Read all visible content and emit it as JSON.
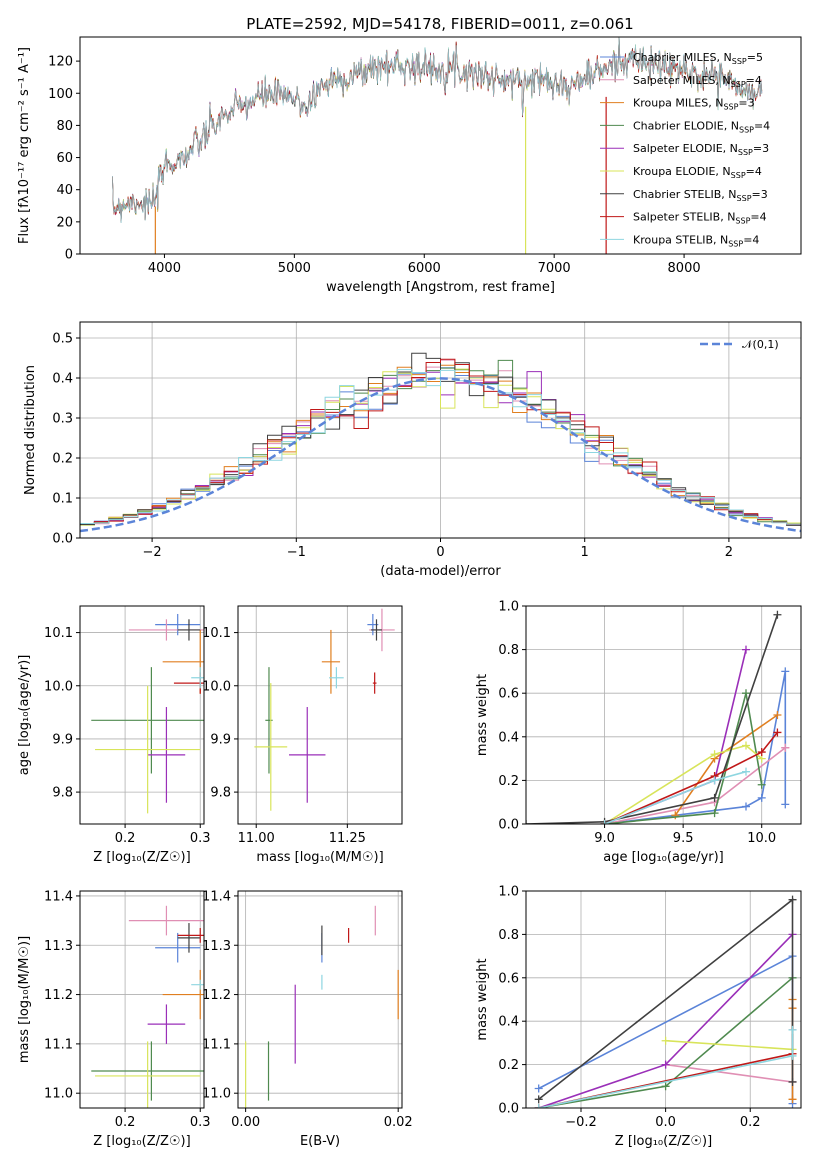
{
  "title": "PLATE=2592, MJD=54178, FIBERID=0011, z=0.061",
  "colors": {
    "Chabrier MILES": "#5b84d8",
    "Salpeter MILES": "#e08fb4",
    "Kroupa MILES": "#e07f20",
    "Chabrier ELODIE": "#4f8a4f",
    "Salpeter ELODIE": "#9a2fb8",
    "Kroupa ELODIE": "#d8e45a",
    "Chabrier STELIB": "#404040",
    "Salpeter STELIB": "#c01818",
    "Kroupa STELIB": "#8ed6e0"
  },
  "chart_data": [
    {
      "type": "line",
      "name": "spectrum",
      "xlabel": "wavelength [Angstrom, rest frame]",
      "ylabel": "Flux [f_λ10^-17 erg cm^-2 s^-1 A^-1]",
      "xlim": [
        3350,
        8900
      ],
      "ylim": [
        0,
        135
      ],
      "xticks": [
        4000,
        5000,
        6000,
        7000,
        8000
      ],
      "yticks": [
        0,
        20,
        40,
        60,
        80,
        100,
        120
      ],
      "grid": false,
      "legend_position": "top-right",
      "legend": [
        {
          "label": "Chabrier MILES, N",
          "sub": "SSP",
          "eq": "=5"
        },
        {
          "label": "Salpeter MILES, N",
          "sub": "SSP",
          "eq": "=4"
        },
        {
          "label": "Kroupa MILES, N",
          "sub": "SSP",
          "eq": "=3"
        },
        {
          "label": "Chabrier ELODIE, N",
          "sub": "SSP",
          "eq": "=4"
        },
        {
          "label": "Salpeter ELODIE, N",
          "sub": "SSP",
          "eq": "=3"
        },
        {
          "label": "Kroupa ELODIE, N",
          "sub": "SSP",
          "eq": "=4"
        },
        {
          "label": "Chabrier STELIB, N",
          "sub": "SSP",
          "eq": "=3"
        },
        {
          "label": "Salpeter STELIB, N",
          "sub": "SSP",
          "eq": "=4"
        },
        {
          "label": "Kroupa STELIB, N",
          "sub": "SSP",
          "eq": "=4"
        }
      ],
      "envelope": [
        [
          3600,
          28
        ],
        [
          3700,
          32
        ],
        [
          3800,
          33
        ],
        [
          3900,
          30
        ],
        [
          3950,
          38
        ],
        [
          4000,
          55
        ],
        [
          4100,
          58
        ],
        [
          4200,
          64
        ],
        [
          4300,
          72
        ],
        [
          4400,
          82
        ],
        [
          4500,
          88
        ],
        [
          4600,
          92
        ],
        [
          4700,
          96
        ],
        [
          4800,
          100
        ],
        [
          4900,
          98
        ],
        [
          5000,
          96
        ],
        [
          5100,
          92
        ],
        [
          5200,
          104
        ],
        [
          5300,
          108
        ],
        [
          5400,
          110
        ],
        [
          5500,
          112
        ],
        [
          5600,
          116
        ],
        [
          5700,
          117
        ],
        [
          5800,
          118
        ],
        [
          5900,
          118
        ],
        [
          6000,
          115
        ],
        [
          6100,
          116
        ],
        [
          6200,
          117
        ],
        [
          6300,
          114
        ],
        [
          6400,
          113
        ],
        [
          6500,
          110
        ],
        [
          6600,
          108
        ],
        [
          6700,
          107
        ],
        [
          6800,
          108
        ],
        [
          6900,
          109
        ],
        [
          7000,
          110
        ],
        [
          7100,
          102
        ],
        [
          7200,
          108
        ],
        [
          7300,
          112
        ],
        [
          7400,
          115
        ],
        [
          7500,
          120
        ],
        [
          7600,
          122
        ],
        [
          7700,
          118
        ],
        [
          7800,
          117
        ],
        [
          7900,
          116
        ],
        [
          8000,
          113
        ],
        [
          8100,
          111
        ],
        [
          8200,
          112
        ],
        [
          8300,
          110
        ],
        [
          8400,
          104
        ],
        [
          8500,
          100
        ],
        [
          8600,
          99
        ]
      ],
      "drops": [
        {
          "x": 3930,
          "to": 0
        },
        {
          "x": 6780,
          "to": 0
        },
        {
          "x": 7400,
          "to": 0
        }
      ]
    },
    {
      "type": "histogram",
      "name": "residuals",
      "xlabel": "(data-model)/error",
      "ylabel": "Normed distribution",
      "xlim": [
        -2.5,
        2.5
      ],
      "ylim": [
        0,
        0.54
      ],
      "xticks": [
        -2,
        -1,
        0,
        1,
        2
      ],
      "yticks": [
        0.0,
        0.1,
        0.2,
        0.3,
        0.4,
        0.5
      ],
      "grid": true,
      "bin_width": 0.1,
      "legend": "𝒩(0,1)",
      "legend_position": "top-right"
    },
    {
      "type": "errorbar",
      "name": "Z-age",
      "xlabel": "Z [log₁₀(Z/Z☉)]",
      "ylabel": "age  [log₁₀(age/yr)]",
      "xlim": [
        0.14,
        0.305
      ],
      "ylim": [
        9.74,
        10.15
      ],
      "xticks": [
        0.2,
        0.3
      ],
      "yticks": [
        9.8,
        9.9,
        10.0,
        10.1
      ],
      "grid": true,
      "points": [
        {
          "s": "Chabrier MILES",
          "x": 0.27,
          "y": 10.115,
          "ex": 0.03,
          "ey": 0.02
        },
        {
          "s": "Salpeter MILES",
          "x": 0.255,
          "y": 10.105,
          "ex": 0.05,
          "ey": 0.02
        },
        {
          "s": "Kroupa MILES",
          "x": 0.3,
          "y": 10.045,
          "ex": 0.05,
          "ey": 0.06
        },
        {
          "s": "Chabrier ELODIE",
          "x": 0.235,
          "y": 9.935,
          "ex": 0.08,
          "ey": 0.1
        },
        {
          "s": "Salpeter ELODIE",
          "x": 0.255,
          "y": 9.87,
          "ex": 0.025,
          "ey": 0.09
        },
        {
          "s": "Kroupa ELODIE",
          "x": 0.23,
          "y": 9.88,
          "ex": 0.07,
          "ey": 0.12
        },
        {
          "s": "Chabrier STELIB",
          "x": 0.285,
          "y": 10.105,
          "ex": 0.015,
          "ey": 0.02
        },
        {
          "s": "Salpeter STELIB",
          "x": 0.3,
          "y": 10.005,
          "ex": 0.035,
          "ey": 0.02
        },
        {
          "s": "Kroupa STELIB",
          "x": 0.3,
          "y": 10.015,
          "ex": 0.012,
          "ey": 0.02
        }
      ]
    },
    {
      "type": "errorbar",
      "name": "mass-age",
      "xlabel": "mass [log₁₀(M/M☉)]",
      "xlim": [
        10.95,
        11.4
      ],
      "ylim": [
        9.74,
        10.15
      ],
      "xticks": [
        11.0,
        11.25
      ],
      "yticks": [
        9.8,
        9.9,
        10.0,
        10.1
      ],
      "grid": true,
      "points": [
        {
          "s": "Chabrier MILES",
          "x": 11.32,
          "y": 10.115,
          "ex": 0.015,
          "ey": 0.02
        },
        {
          "s": "Salpeter MILES",
          "x": 11.345,
          "y": 10.105,
          "ex": 0.035,
          "ey": 0.04
        },
        {
          "s": "Kroupa MILES",
          "x": 11.205,
          "y": 10.045,
          "ex": 0.025,
          "ey": 0.06
        },
        {
          "s": "Chabrier ELODIE",
          "x": 11.035,
          "y": 9.935,
          "ex": 0.01,
          "ey": 0.1
        },
        {
          "s": "Salpeter ELODIE",
          "x": 11.14,
          "y": 9.87,
          "ex": 0.05,
          "ey": 0.09
        },
        {
          "s": "Kroupa ELODIE",
          "x": 11.04,
          "y": 9.885,
          "ex": 0.045,
          "ey": 0.12
        },
        {
          "s": "Chabrier STELIB",
          "x": 11.33,
          "y": 10.105,
          "ex": 0.015,
          "ey": 0.02
        },
        {
          "s": "Salpeter STELIB",
          "x": 11.325,
          "y": 10.005,
          "ex": 0.005,
          "ey": 0.02
        },
        {
          "s": "Kroupa STELIB",
          "x": 11.22,
          "y": 10.015,
          "ex": 0.02,
          "ey": 0.02
        }
      ]
    },
    {
      "type": "line",
      "name": "age-weight",
      "xlabel": "age  [log₁₀(age/yr)]",
      "ylabel": "mass weight",
      "xlim": [
        8.5,
        10.25
      ],
      "ylim": [
        0,
        1.0
      ],
      "xticks": [
        9.0,
        9.5,
        10.0
      ],
      "yticks": [
        0.0,
        0.2,
        0.4,
        0.6,
        0.8,
        1.0
      ],
      "grid": true,
      "series": [
        {
          "s": "Chabrier MILES",
          "x": [
            9.0,
            9.9,
            10.0,
            10.15,
            10.15
          ],
          "y": [
            0.0,
            0.08,
            0.12,
            0.7,
            0.09
          ]
        },
        {
          "s": "Salpeter MILES",
          "x": [
            9.0,
            9.7,
            10.15,
            10.15
          ],
          "y": [
            0.0,
            0.1,
            0.35,
            0.35
          ]
        },
        {
          "s": "Kroupa MILES",
          "x": [
            9.45,
            9.7,
            10.1
          ],
          "y": [
            0.04,
            0.3,
            0.5
          ]
        },
        {
          "s": "Chabrier ELODIE",
          "x": [
            9.0,
            9.7,
            9.9,
            10.0
          ],
          "y": [
            0.0,
            0.05,
            0.6,
            0.18
          ]
        },
        {
          "s": "Salpeter ELODIE",
          "x": [
            9.0,
            9.7,
            9.9
          ],
          "y": [
            0.0,
            0.2,
            0.8
          ]
        },
        {
          "s": "Kroupa ELODIE",
          "x": [
            9.0,
            9.7,
            9.9,
            10.0
          ],
          "y": [
            0.0,
            0.32,
            0.36,
            0.3
          ]
        },
        {
          "s": "Chabrier STELIB",
          "x": [
            8.5,
            9.0,
            9.7,
            10.1
          ],
          "y": [
            0.0,
            0.01,
            0.12,
            0.96
          ]
        },
        {
          "s": "Salpeter STELIB",
          "x": [
            9.0,
            9.7,
            10.0,
            10.1
          ],
          "y": [
            0.0,
            0.22,
            0.33,
            0.42
          ]
        },
        {
          "s": "Kroupa STELIB",
          "x": [
            9.0,
            9.7,
            9.9
          ],
          "y": [
            0.0,
            0.2,
            0.24
          ]
        }
      ]
    },
    {
      "type": "errorbar",
      "name": "Z-mass",
      "xlabel": "Z [log₁₀(Z/Z☉)]",
      "ylabel": "mass [log₁₀(M/M☉)]",
      "xlim": [
        0.14,
        0.305
      ],
      "ylim": [
        10.97,
        11.41
      ],
      "xticks": [
        0.2,
        0.3
      ],
      "yticks": [
        11.0,
        11.1,
        11.2,
        11.3,
        11.4
      ],
      "grid": true,
      "points": [
        {
          "s": "Chabrier MILES",
          "x": 0.27,
          "y": 11.295,
          "ex": 0.03,
          "ey": 0.03
        },
        {
          "s": "Salpeter MILES",
          "x": 0.255,
          "y": 11.35,
          "ex": 0.05,
          "ey": 0.03
        },
        {
          "s": "Kroupa MILES",
          "x": 0.3,
          "y": 11.2,
          "ex": 0.05,
          "ey": 0.05
        },
        {
          "s": "Chabrier ELODIE",
          "x": 0.235,
          "y": 11.045,
          "ex": 0.08,
          "ey": 0.06
        },
        {
          "s": "Salpeter ELODIE",
          "x": 0.255,
          "y": 11.14,
          "ex": 0.025,
          "ey": 0.04
        },
        {
          "s": "Kroupa ELODIE",
          "x": 0.23,
          "y": 11.035,
          "ex": 0.07,
          "ey": 0.07
        },
        {
          "s": "Chabrier STELIB",
          "x": 0.285,
          "y": 11.315,
          "ex": 0.015,
          "ey": 0.03
        },
        {
          "s": "Salpeter STELIB",
          "x": 0.3,
          "y": 11.32,
          "ex": 0.03,
          "ey": 0.015
        },
        {
          "s": "Kroupa STELIB",
          "x": 0.3,
          "y": 11.22,
          "ex": 0.012,
          "ey": 0.01
        }
      ]
    },
    {
      "type": "errorbar",
      "name": "EBV-mass",
      "xlabel": "E(B-V)",
      "xlim": [
        -0.001,
        0.0205
      ],
      "ylim": [
        10.97,
        11.41
      ],
      "xticks": [
        0.0,
        0.02
      ],
      "yticks": [
        11.0,
        11.1,
        11.2,
        11.3,
        11.4
      ],
      "grid": true,
      "points": [
        {
          "s": "Chabrier MILES",
          "x": 0.01,
          "y": 11.295,
          "ey": 0.03
        },
        {
          "s": "Salpeter MILES",
          "x": 0.017,
          "y": 11.35,
          "ey": 0.03
        },
        {
          "s": "Kroupa MILES",
          "x": 0.02,
          "y": 11.2,
          "ey": 0.05
        },
        {
          "s": "Chabrier ELODIE",
          "x": 0.003,
          "y": 11.045,
          "ey": 0.06
        },
        {
          "s": "Salpeter ELODIE",
          "x": 0.0065,
          "y": 11.14,
          "ey": 0.08
        },
        {
          "s": "Kroupa ELODIE",
          "x": 0.0,
          "y": 11.035,
          "ey": 0.07
        },
        {
          "s": "Chabrier STELIB",
          "x": 0.01,
          "y": 11.31,
          "ey": 0.03
        },
        {
          "s": "Salpeter STELIB",
          "x": 0.0135,
          "y": 11.32,
          "ey": 0.015
        },
        {
          "s": "Kroupa STELIB",
          "x": 0.01,
          "y": 11.225,
          "ey": 0.015
        }
      ]
    },
    {
      "type": "line",
      "name": "Z-weight",
      "xlabel": "Z [log₁₀(Z/Z☉)]",
      "ylabel": "mass weight",
      "xlim": [
        -0.33,
        0.32
      ],
      "ylim": [
        0,
        1.0
      ],
      "xticks": [
        -0.2,
        0.0,
        0.2
      ],
      "yticks": [
        0.0,
        0.2,
        0.4,
        0.6,
        0.8,
        1.0
      ],
      "grid": true,
      "series": [
        {
          "s": "Chabrier MILES",
          "x": [
            -0.3,
            0.3,
            0.3
          ],
          "y": [
            0.09,
            0.7,
            0.02
          ]
        },
        {
          "s": "Salpeter MILES",
          "x": [
            0.0,
            0.3,
            0.3
          ],
          "y": [
            0.2,
            0.12,
            0.36
          ]
        },
        {
          "s": "Kroupa MILES",
          "x": [
            0.3,
            0.3,
            0.3
          ],
          "y": [
            0.46,
            0.5,
            0.04
          ]
        },
        {
          "s": "Chabrier ELODIE",
          "x": [
            -0.3,
            0.0,
            0.3
          ],
          "y": [
            0.0,
            0.1,
            0.6
          ]
        },
        {
          "s": "Salpeter ELODIE",
          "x": [
            -0.3,
            0.0,
            0.3
          ],
          "y": [
            0.0,
            0.2,
            0.8
          ]
        },
        {
          "s": "Kroupa ELODIE",
          "x": [
            0.0,
            0.3
          ],
          "y": [
            0.31,
            0.27
          ]
        },
        {
          "s": "Chabrier STELIB",
          "x": [
            -0.3,
            0.3,
            0.3
          ],
          "y": [
            0.04,
            0.96,
            0.12
          ]
        },
        {
          "s": "Salpeter STELIB",
          "x": [
            -0.3,
            0.3
          ],
          "y": [
            0.0,
            0.25
          ]
        },
        {
          "s": "Kroupa STELIB",
          "x": [
            -0.3,
            0.3,
            0.3
          ],
          "y": [
            0.0,
            0.24,
            0.36
          ]
        }
      ]
    }
  ]
}
